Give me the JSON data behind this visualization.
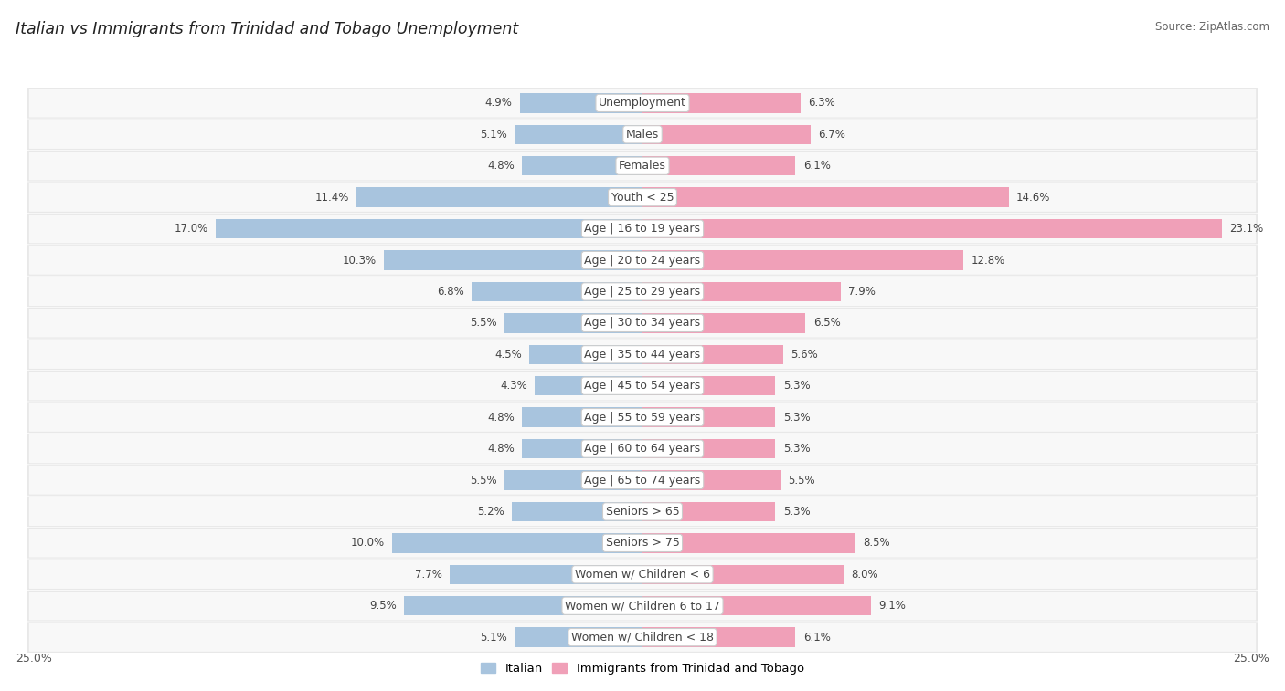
{
  "title": "Italian vs Immigrants from Trinidad and Tobago Unemployment",
  "source": "Source: ZipAtlas.com",
  "categories": [
    "Unemployment",
    "Males",
    "Females",
    "Youth < 25",
    "Age | 16 to 19 years",
    "Age | 20 to 24 years",
    "Age | 25 to 29 years",
    "Age | 30 to 34 years",
    "Age | 35 to 44 years",
    "Age | 45 to 54 years",
    "Age | 55 to 59 years",
    "Age | 60 to 64 years",
    "Age | 65 to 74 years",
    "Seniors > 65",
    "Seniors > 75",
    "Women w/ Children < 6",
    "Women w/ Children 6 to 17",
    "Women w/ Children < 18"
  ],
  "italian": [
    4.9,
    5.1,
    4.8,
    11.4,
    17.0,
    10.3,
    6.8,
    5.5,
    4.5,
    4.3,
    4.8,
    4.8,
    5.5,
    5.2,
    10.0,
    7.7,
    9.5,
    5.1
  ],
  "immigrants": [
    6.3,
    6.7,
    6.1,
    14.6,
    23.1,
    12.8,
    7.9,
    6.5,
    5.6,
    5.3,
    5.3,
    5.3,
    5.5,
    5.3,
    8.5,
    8.0,
    9.1,
    6.1
  ],
  "italian_color": "#a8c4de",
  "immigrant_color": "#f0a0b8",
  "row_bg_color": "#e8e8e8",
  "row_inner_color": "#f8f8f8",
  "max_val": 25.0,
  "label_fontsize": 9.0,
  "title_fontsize": 12.5,
  "value_fontsize": 8.5,
  "source_fontsize": 8.5
}
